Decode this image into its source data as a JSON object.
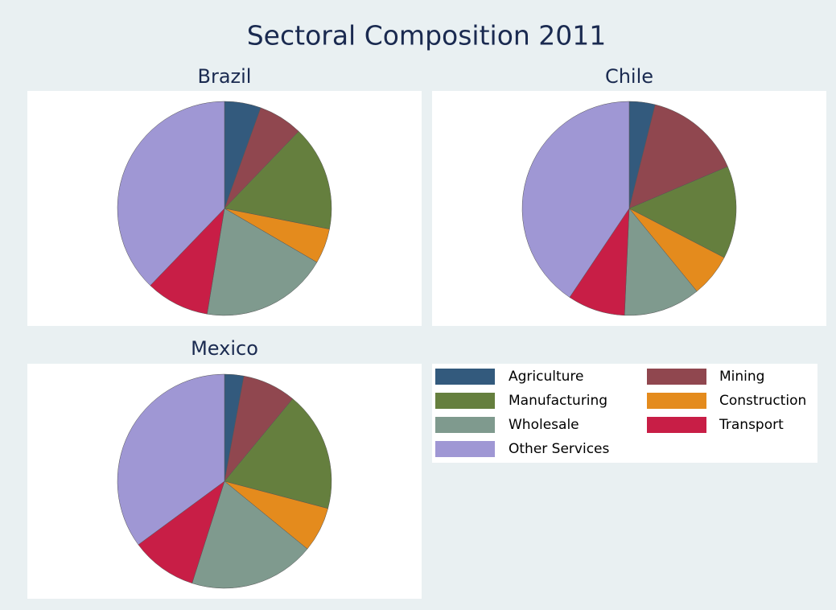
{
  "title": "Sectoral Composition 2011",
  "chart_data": [
    {
      "type": "pie",
      "title": "Brazil",
      "categories": [
        "Agriculture",
        "Mining",
        "Manufacturing",
        "Construction",
        "Wholesale",
        "Transport",
        "Other Services"
      ],
      "colors": [
        "#335a7d",
        "#90474f",
        "#657f3e",
        "#e48b1d",
        "#7f9a8e",
        "#c81e46",
        "#9f97d4"
      ],
      "values": [
        5.5,
        6.7,
        15.9,
        5.3,
        19.2,
        9.6,
        37.8
      ]
    },
    {
      "type": "pie",
      "title": "Chile",
      "categories": [
        "Agriculture",
        "Mining",
        "Manufacturing",
        "Construction",
        "Wholesale",
        "Transport",
        "Other Services"
      ],
      "colors": [
        "#335a7d",
        "#90474f",
        "#657f3e",
        "#e48b1d",
        "#7f9a8e",
        "#c81e46",
        "#9f97d4"
      ],
      "values": [
        3.9,
        14.7,
        14.0,
        6.5,
        11.6,
        8.7,
        40.6
      ]
    },
    {
      "type": "pie",
      "title": "Mexico",
      "categories": [
        "Agriculture",
        "Mining",
        "Manufacturing",
        "Construction",
        "Wholesale",
        "Transport",
        "Other Services"
      ],
      "colors": [
        "#335a7d",
        "#90474f",
        "#657f3e",
        "#e48b1d",
        "#7f9a8e",
        "#c81e46",
        "#9f97d4"
      ],
      "values": [
        2.9,
        8.1,
        18.1,
        6.8,
        19.0,
        10.0,
        35.1
      ]
    }
  ]
}
